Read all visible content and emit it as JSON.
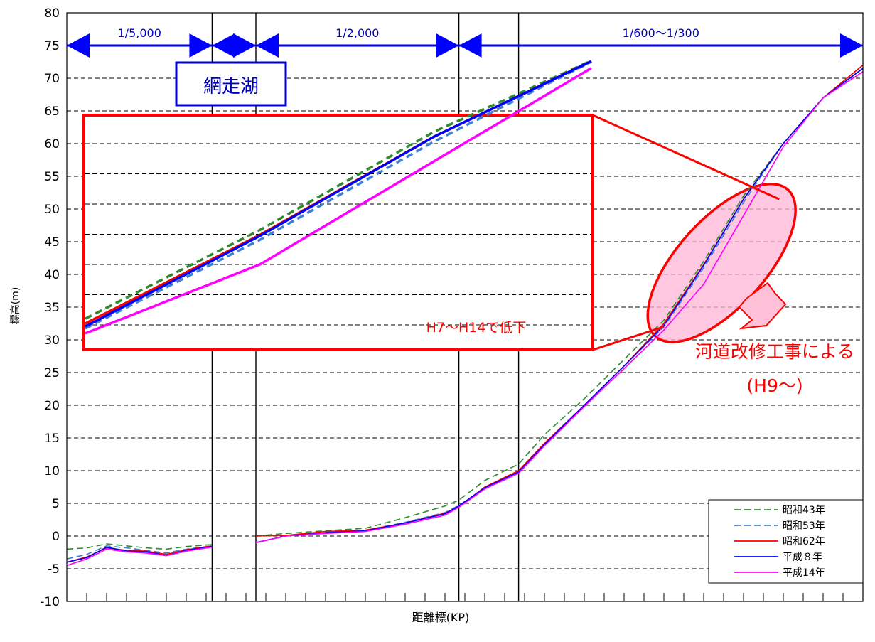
{
  "chart_data": {
    "type": "line",
    "xlabel": "距離標(KP)",
    "ylabel": "標高(m)",
    "ylim": [
      -10,
      80
    ],
    "yticks": [
      -10,
      -5,
      0,
      5,
      10,
      15,
      20,
      25,
      30,
      35,
      40,
      45,
      50,
      55,
      60,
      65,
      70,
      75,
      80
    ],
    "xlim": [
      0,
      40
    ],
    "grid": "horizontal dashed",
    "legend_position": "bottom-right",
    "legend": [
      {
        "name": "昭和43年",
        "color": "#2e8b2e",
        "dash": "dashed"
      },
      {
        "name": "昭和53年",
        "color": "#3f7fd4",
        "dash": "dashed"
      },
      {
        "name": "昭和62年",
        "color": "#ff0000",
        "dash": "solid"
      },
      {
        "name": "平成８年",
        "color": "#0000ff",
        "dash": "solid"
      },
      {
        "name": "平成14年",
        "color": "#ff00ff",
        "dash": "solid"
      }
    ],
    "section_dividers_x": [
      7.3,
      9.5,
      19.7,
      22.7
    ],
    "gradient_labels": [
      {
        "text": "1/5,000",
        "x_from": 0,
        "x_to": 7.3
      },
      {
        "text": "",
        "x_from": 7.3,
        "x_to": 9.5
      },
      {
        "text": "1/2,000",
        "x_from": 9.5,
        "x_to": 19.7
      },
      {
        "text": "1/600～1/300",
        "x_from": 19.7,
        "x_to": 40
      }
    ],
    "annotations": {
      "lake": "網走湖",
      "inset_note": "H7～H14で低下",
      "cause_line1": "河道改修工事による",
      "cause_line2": "(H9～)"
    },
    "color_lake_box": "#0000cc",
    "color_highlight": "#ff0000",
    "series": [
      {
        "name": "昭和43年",
        "x": [
          0,
          1,
          2,
          3,
          4,
          5,
          6,
          7.3,
          9.5,
          11,
          13,
          15,
          17,
          19,
          19.7,
          21,
          22.7,
          24,
          26,
          28,
          30,
          32,
          34,
          36,
          38,
          40
        ],
        "y": [
          -2,
          -1.8,
          -1.2,
          -1.5,
          -1.8,
          -2,
          -1.6,
          -1.3,
          0,
          0.4,
          0.8,
          1.2,
          2.8,
          4.6,
          5.5,
          8.5,
          11,
          15.5,
          21,
          27,
          33,
          42,
          52,
          60,
          67,
          72
        ]
      },
      {
        "name": "昭和53年",
        "x": [
          0,
          1,
          2,
          3,
          4,
          5,
          6,
          7.3,
          9.5,
          11,
          13,
          15,
          17,
          19,
          19.7,
          21,
          22.7,
          24,
          26,
          28,
          30,
          32,
          34,
          36,
          38,
          40
        ],
        "y": [
          -3.5,
          -2.8,
          -1.5,
          -1.8,
          -2.2,
          -2.6,
          -2,
          -1.5,
          -1,
          0,
          0.6,
          0.9,
          2.1,
          3.6,
          4.7,
          7.3,
          9.8,
          14,
          20,
          26,
          32,
          41,
          51,
          60,
          67,
          71.5
        ]
      },
      {
        "name": "昭和62年",
        "x": [
          0,
          1,
          2,
          3,
          4,
          5,
          6,
          7.3,
          9.5,
          11,
          13,
          15,
          17,
          19,
          19.7,
          21,
          22.7,
          24,
          26,
          28,
          30,
          32,
          34,
          36,
          38,
          40
        ],
        "y": [
          -4,
          -3.2,
          -1.8,
          -2.2,
          -2.3,
          -2.8,
          -2.1,
          -1.5,
          0,
          0.1,
          0.7,
          0.9,
          2,
          3.5,
          4.5,
          7.5,
          10,
          14.2,
          20,
          26,
          32.5,
          41.5,
          51.5,
          60,
          67,
          72
        ]
      },
      {
        "name": "平成８年",
        "x": [
          0,
          1,
          2,
          3,
          4,
          5,
          6,
          7.3,
          9.5,
          11,
          13,
          15,
          17,
          19,
          19.7,
          21,
          22.7,
          24,
          26,
          28,
          30,
          32,
          34,
          36,
          38,
          40
        ],
        "y": [
          -4,
          -3.3,
          -1.7,
          -2.3,
          -2.4,
          -3,
          -2.2,
          -1.6,
          -1,
          0,
          0.5,
          0.8,
          2,
          3.4,
          4.6,
          7.4,
          9.8,
          14,
          20,
          26,
          32.2,
          41.4,
          51.5,
          60,
          67,
          71.5
        ]
      },
      {
        "name": "平成14年",
        "x": [
          0,
          1,
          2,
          3,
          4,
          5,
          6,
          7.3,
          9.5,
          11,
          13,
          15,
          17,
          19,
          19.7,
          21,
          22.7,
          24,
          26,
          28,
          30,
          32,
          34,
          36,
          38,
          40
        ],
        "y": [
          -4.5,
          -3.5,
          -2,
          -2.4,
          -2.6,
          -3,
          -2.3,
          -1.7,
          -1,
          0,
          0.4,
          0.7,
          1.8,
          3.2,
          4.4,
          7.2,
          9.6,
          13.8,
          19.8,
          25.6,
          31.5,
          38.5,
          49,
          59.5,
          67,
          71
        ]
      }
    ]
  }
}
